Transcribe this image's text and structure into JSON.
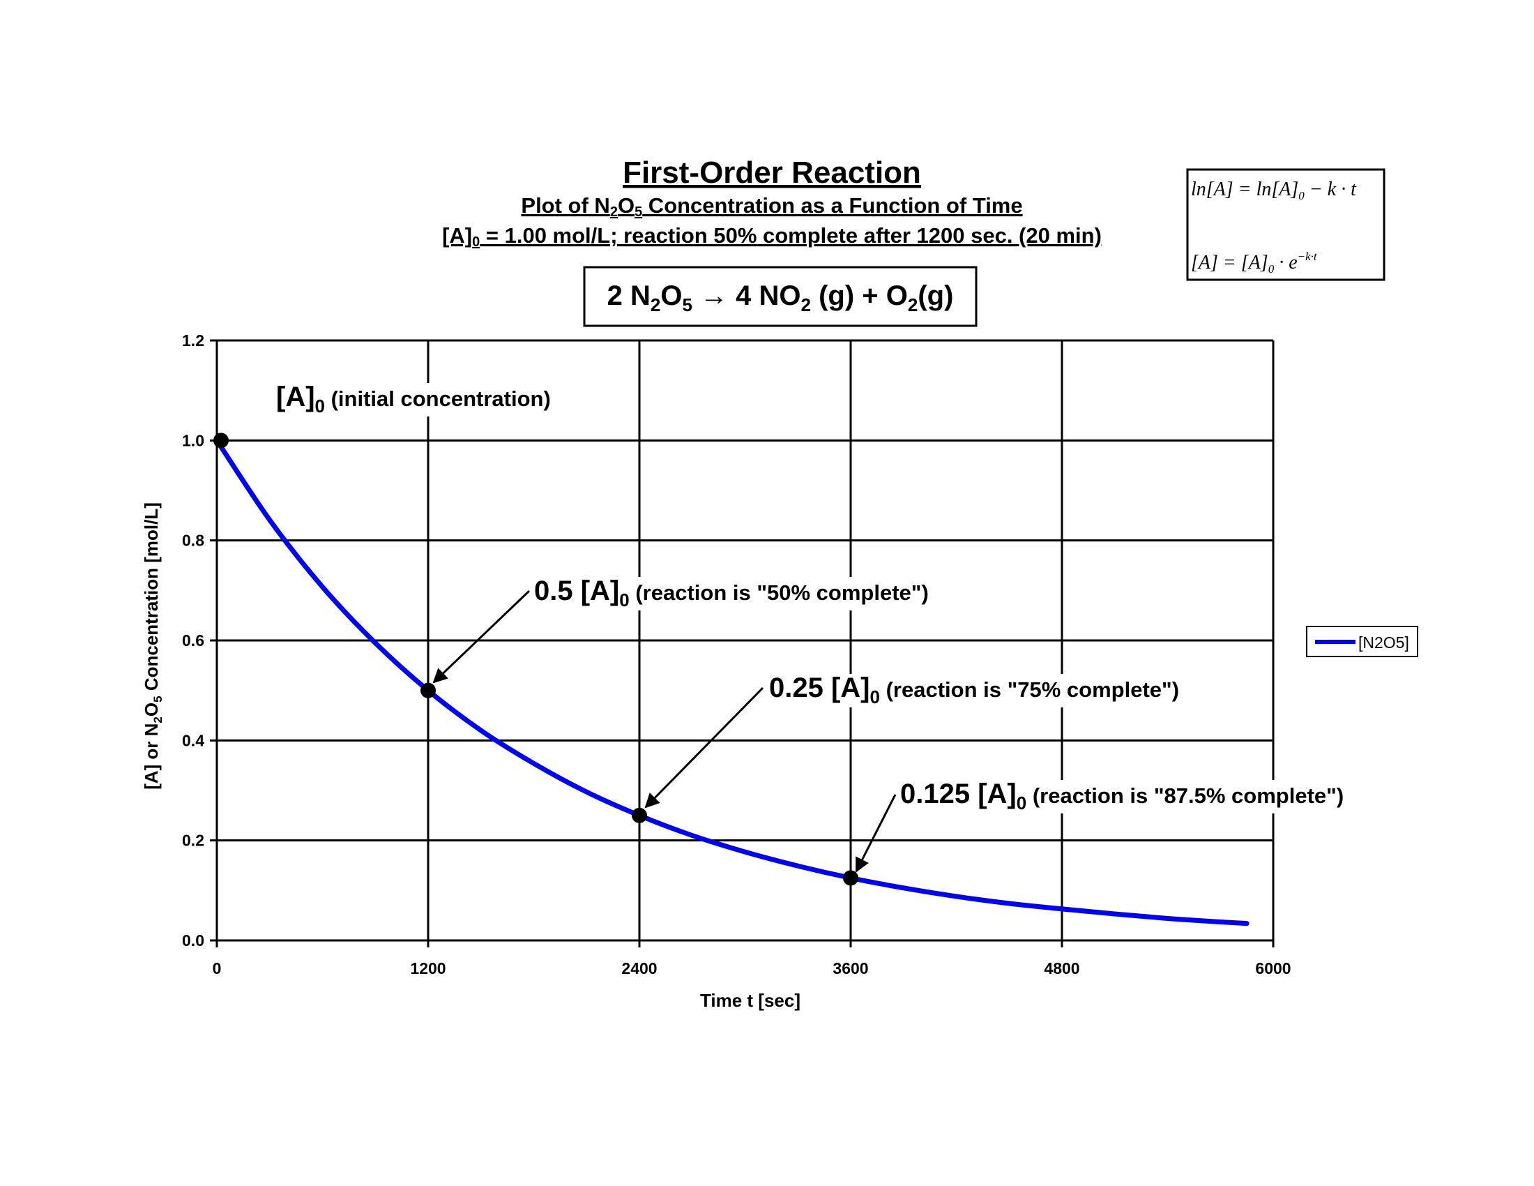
{
  "chart_data": {
    "type": "line",
    "title": "First-Order Reaction",
    "subtitle_parts": [
      "Plot of N",
      "2",
      "O",
      "5",
      " Concentration as a Function of Time"
    ],
    "subtitle2_parts": [
      "[A]",
      "0",
      " = 1.00 mol/L; reaction 50% complete after 1200 sec. (20 min)"
    ],
    "equation_parts": [
      "2 N",
      "2",
      "O",
      "5",
      " → 4 NO",
      "2",
      " (g) + O",
      "2",
      "(g)"
    ],
    "formulas": {
      "line1_parts": [
        "ln[A] = ln[A]",
        "0",
        " − k · t"
      ],
      "line2_parts": [
        "[A] = [A]",
        "0",
        " · e",
        "−k·t"
      ]
    },
    "xlabel": "Time t [sec]",
    "ylabel_parts": [
      "[A] or N",
      "2",
      "O",
      "5",
      " Concentration [mol/L]"
    ],
    "xlim": [
      0,
      6000
    ],
    "ylim": [
      0,
      1.2
    ],
    "xticks": [
      "0",
      "1200",
      "2400",
      "3600",
      "4800",
      "6000"
    ],
    "yticks": [
      "0.0",
      "0.2",
      "0.4",
      "0.6",
      "0.8",
      "1.0",
      "1.2"
    ],
    "grid": true,
    "legend_position": "right",
    "x": [
      0,
      300,
      600,
      900,
      1200,
      1500,
      1800,
      2100,
      2400,
      2700,
      3000,
      3300,
      3600,
      3900,
      4200,
      4500,
      4800,
      5100,
      5400,
      5700,
      5850
    ],
    "series": [
      {
        "name": "[N2O5]",
        "color": "#0000ff",
        "values": [
          1.0,
          0.841,
          0.707,
          0.595,
          0.5,
          0.42,
          0.354,
          0.297,
          0.25,
          0.21,
          0.177,
          0.149,
          0.125,
          0.105,
          0.088,
          0.074,
          0.063,
          0.053,
          0.044,
          0.037,
          0.034
        ]
      }
    ],
    "marked_points": [
      {
        "x": 0,
        "y": 1.0
      },
      {
        "x": 1200,
        "y": 0.5
      },
      {
        "x": 2400,
        "y": 0.25
      },
      {
        "x": 3600,
        "y": 0.125
      }
    ],
    "annotations": [
      {
        "big": "[A]",
        "sub": "0",
        "rest": " (initial concentration)"
      },
      {
        "big": "0.5 [A]",
        "sub": "0",
        "rest": " (reaction is \"50% complete\")"
      },
      {
        "big": "0.25 [A]",
        "sub": "0",
        "rest": " (reaction is \"75% complete\")"
      },
      {
        "big": "0.125 [A]",
        "sub": "0",
        "rest": " (reaction is \"87.5% complete\")"
      }
    ]
  }
}
